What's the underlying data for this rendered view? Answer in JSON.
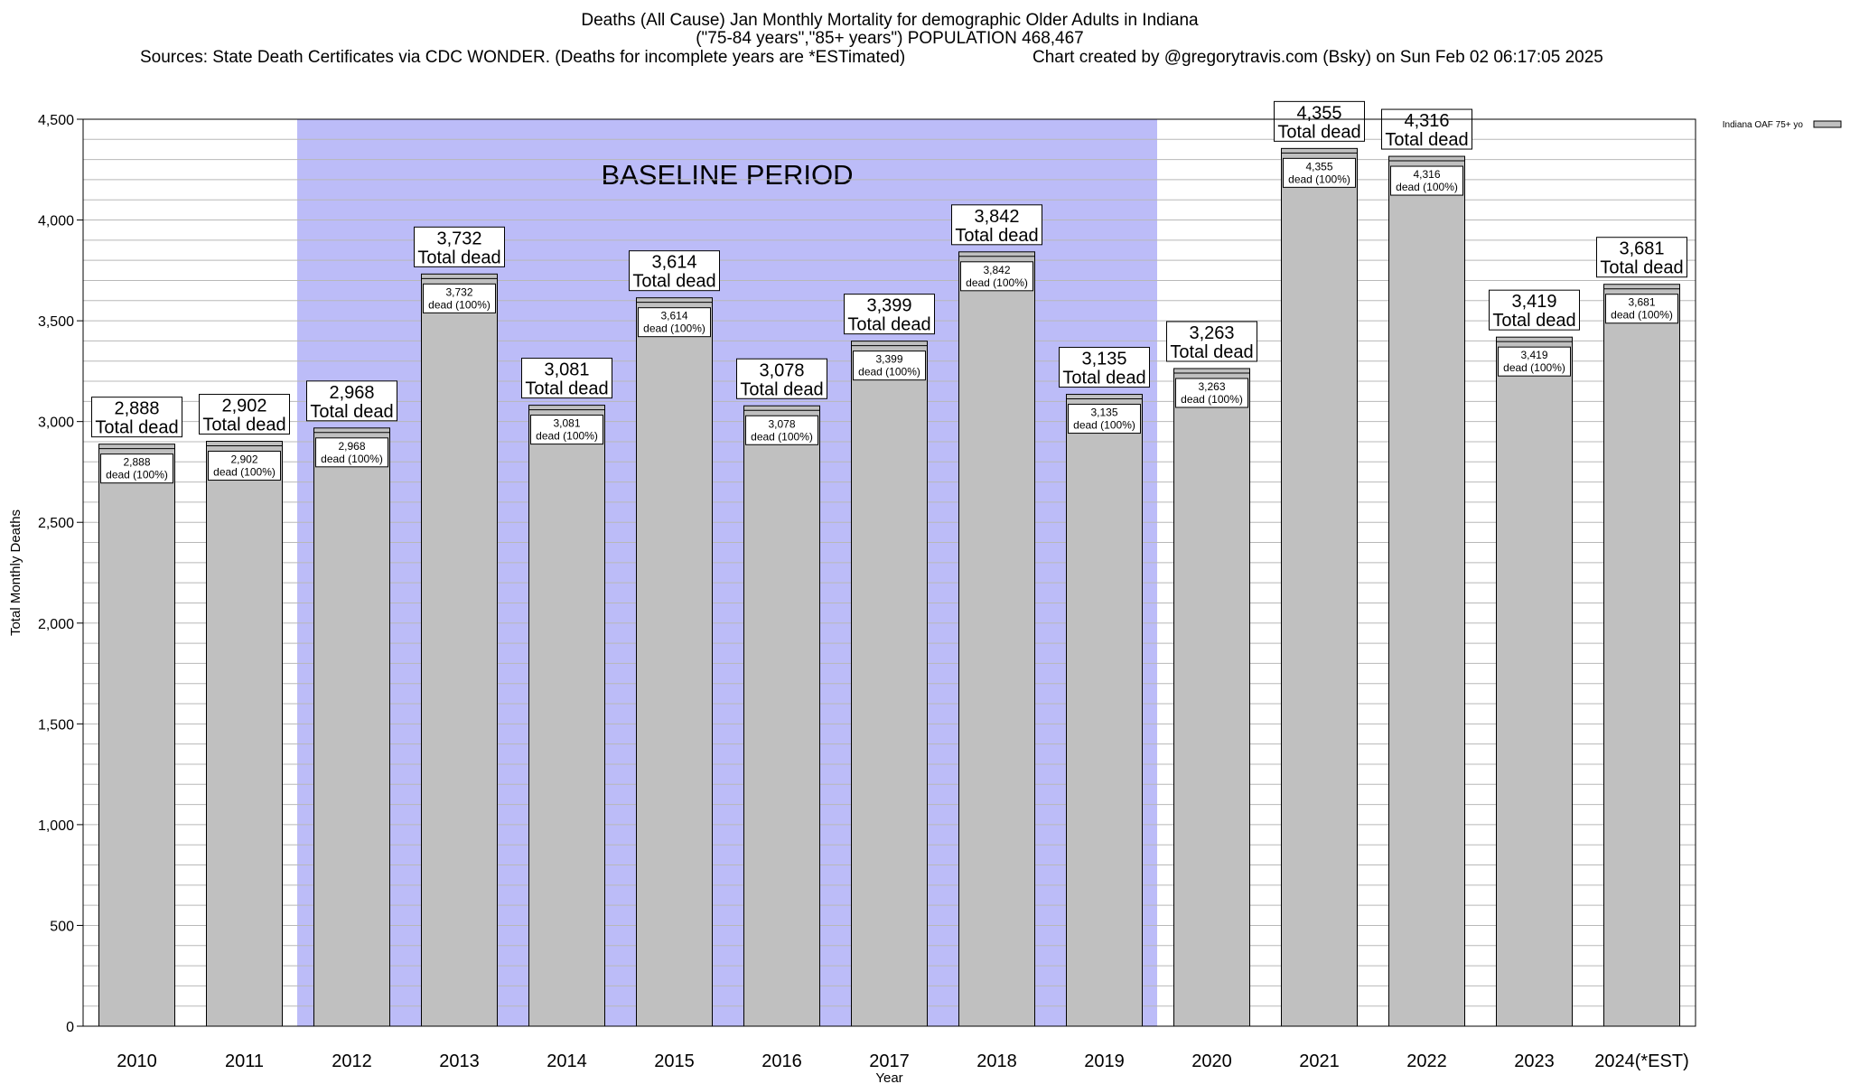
{
  "header": {
    "title_line1": "Deaths (All Cause) Jan Monthly Mortality for demographic Older Adults in Indiana",
    "title_line2": "(\"75-84 years\",\"85+ years\") POPULATION 468,467",
    "sources": "Sources: State Death Certificates via CDC WONDER. (Deaths for incomplete years are *ESTimated)",
    "credit": "Chart created by @gregorytravis.com (Bsky) on Sun Feb 02 06:17:05 2025"
  },
  "colors": {
    "bar_fill": "#c0c0c0",
    "baseline_band": "#bcbcf8",
    "grid": "#b8b8b8",
    "axis": "#000000"
  },
  "chart_data": {
    "type": "bar",
    "title": "Deaths (All Cause) Jan Monthly Mortality for demographic Older Adults in Indiana",
    "categories": [
      "2010",
      "2011",
      "2012",
      "2013",
      "2014",
      "2015",
      "2016",
      "2017",
      "2018",
      "2019",
      "2020",
      "2021",
      "2022",
      "2023",
      "2024(*EST)"
    ],
    "series": [
      {
        "name": "Indiana OAF 75+ yo",
        "values": [
          2888,
          2902,
          2968,
          3732,
          3081,
          3614,
          3078,
          3399,
          3842,
          3135,
          3263,
          4355,
          4316,
          3419,
          3681
        ]
      }
    ],
    "value_labels": [
      "2,888",
      "2,902",
      "2,968",
      "3,732",
      "3,081",
      "3,614",
      "3,078",
      "3,399",
      "3,842",
      "3,135",
      "3,263",
      "4,355",
      "4,316",
      "3,419",
      "3,681"
    ],
    "total_label_suffix": "Total dead",
    "inner_label_suffix": "dead (100%)",
    "xlabel": "Year",
    "ylabel": "Total Monthly Deaths",
    "ylim": [
      0,
      4500
    ],
    "yticks": [
      0,
      500,
      1000,
      1500,
      2000,
      2500,
      3000,
      3500,
      4000,
      4500
    ],
    "ytick_labels": [
      "0",
      "500",
      "1,000",
      "1,500",
      "2,000",
      "2,500",
      "3,000",
      "3,500",
      "4,000",
      "4,500"
    ],
    "minor_grid_step": 100,
    "grid": true,
    "legend": "top-right",
    "annotation": {
      "text": "BASELINE PERIOD",
      "from_category": "2012",
      "to_category": "2019"
    }
  }
}
